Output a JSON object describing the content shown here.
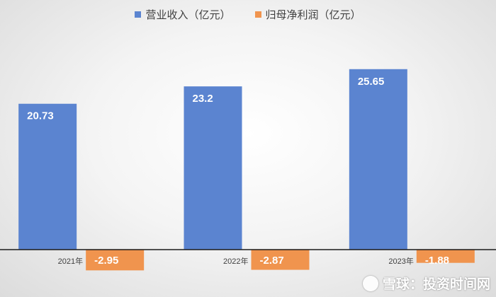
{
  "chart_data": {
    "type": "bar",
    "categories": [
      "2021年",
      "2022年",
      "2023年"
    ],
    "series": [
      {
        "name": "营业收入（亿元）",
        "values": [
          20.73,
          23.2,
          25.65
        ],
        "color": "#5b84d0"
      },
      {
        "name": "归母净利润（亿元）",
        "values": [
          -2.95,
          -2.87,
          -1.88
        ],
        "color": "#f0944e"
      }
    ],
    "ylim": [
      -3.3,
      30
    ],
    "grid": false,
    "legend_position": "top",
    "data_labels": true
  },
  "watermark": {
    "text": "雪球：投资时间网"
  }
}
